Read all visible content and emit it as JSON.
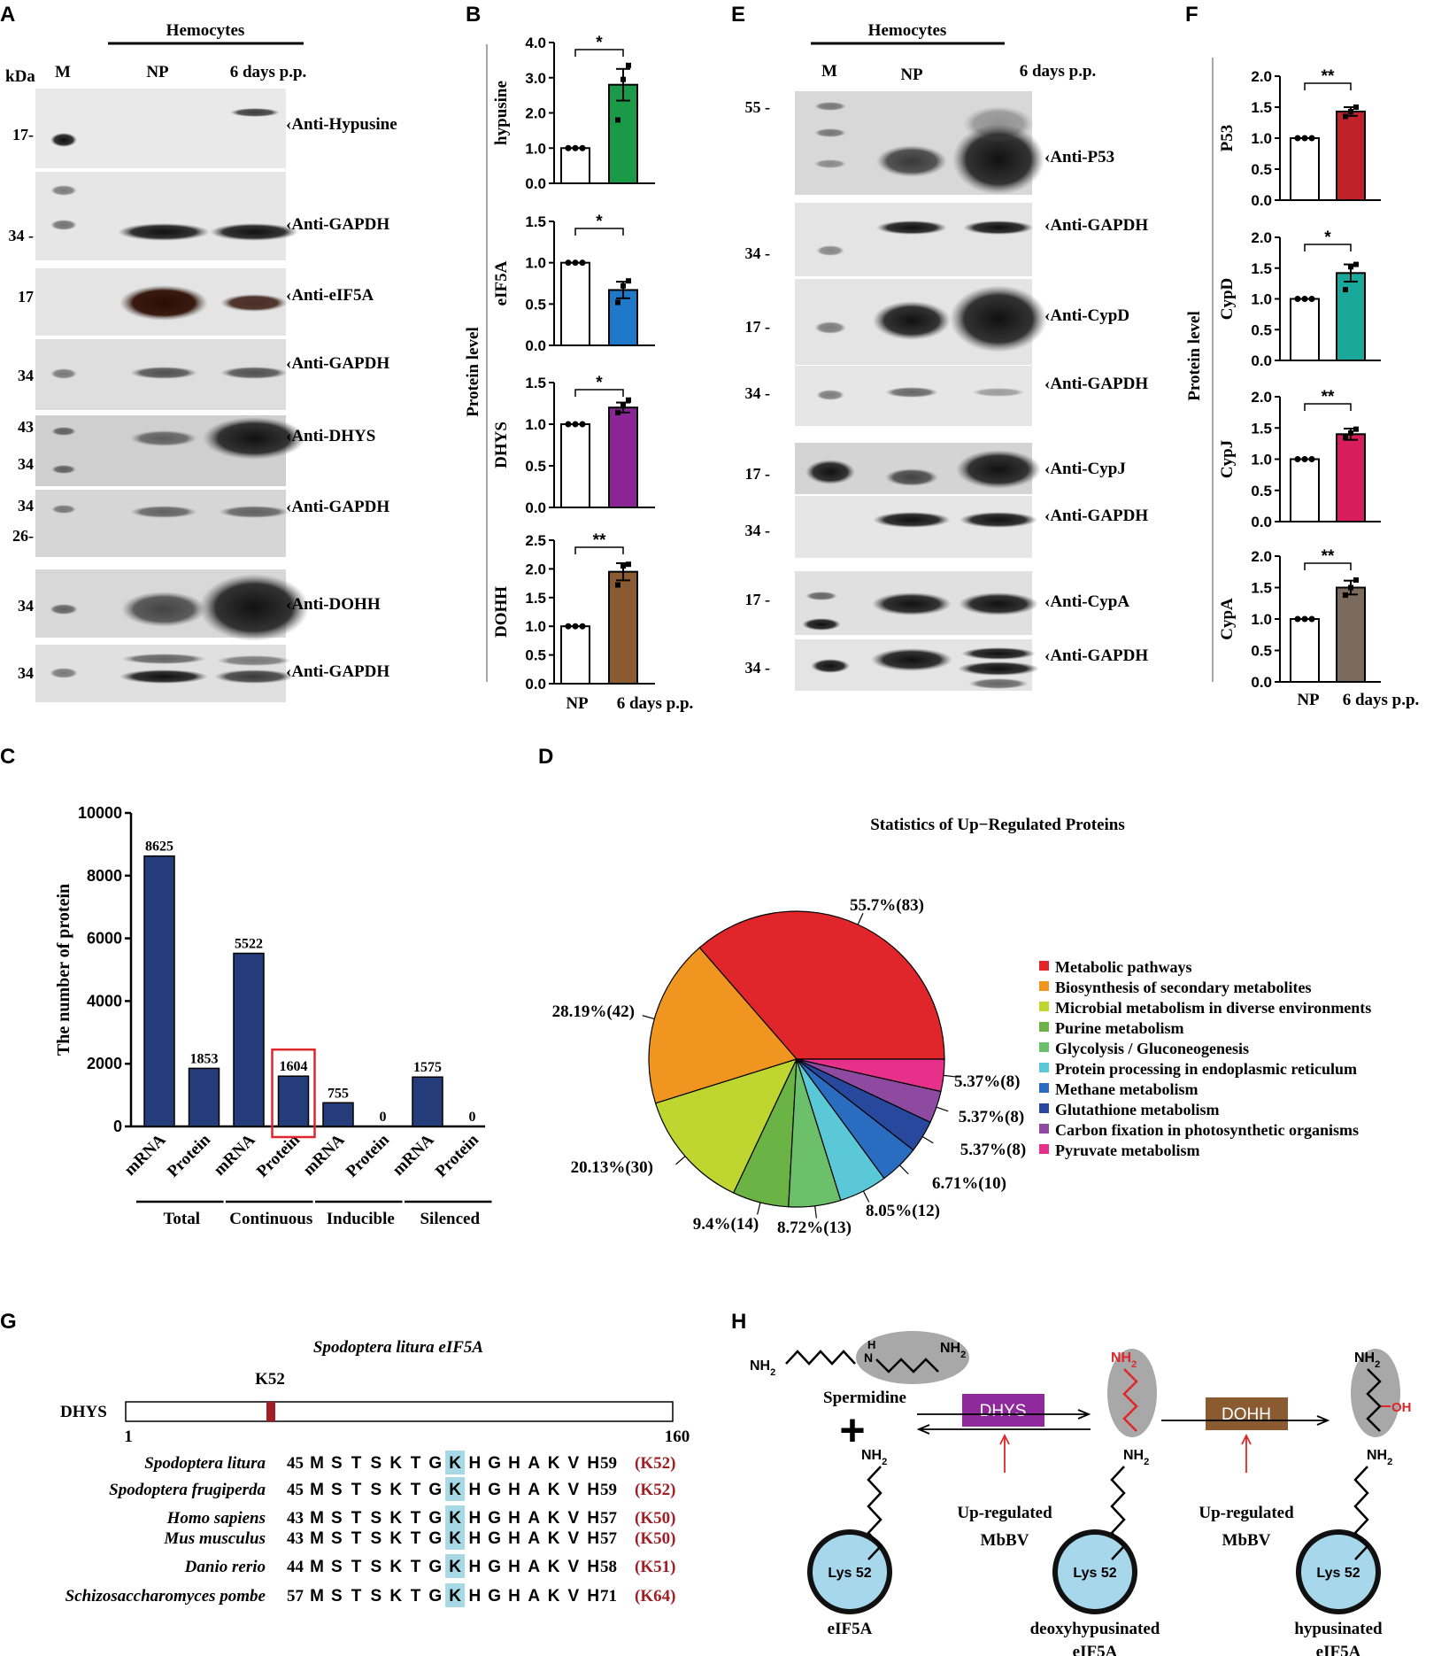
{
  "panel_letters": [
    "A",
    "B",
    "C",
    "D",
    "E",
    "F",
    "G",
    "H"
  ],
  "panelA": {
    "group_label": "Hemocytes",
    "kda_label": "kDa",
    "lane_labels": [
      "M",
      "NP",
      "6 days p.p."
    ],
    "blots": [
      {
        "label": "Anti-Hypusine",
        "markers": [
          "17-"
        ]
      },
      {
        "label": "Anti-GAPDH",
        "markers": [
          "34 -"
        ]
      },
      {
        "label": "Anti-eIF5A",
        "markers": [
          "17"
        ]
      },
      {
        "label": "Anti-GAPDH",
        "markers": [
          "34"
        ]
      },
      {
        "label": "Anti-DHYS",
        "markers": [
          "43",
          "34"
        ]
      },
      {
        "label": "Anti-GAPDH",
        "markers": [
          "34",
          "26-"
        ]
      },
      {
        "label": "Anti-DOHH",
        "markers": [
          "34"
        ]
      },
      {
        "label": "Anti-GAPDH",
        "markers": [
          "34"
        ]
      }
    ]
  },
  "panelE": {
    "group_label": "Hemocytes",
    "lane_labels": [
      "M",
      "NP",
      "6 days p.p."
    ],
    "blots": [
      {
        "label": "Anti-P53",
        "markers": [
          "55 -"
        ]
      },
      {
        "label": "Anti-GAPDH",
        "markers": [
          "34 -"
        ]
      },
      {
        "label": "Anti-CypD",
        "markers": [
          "17 -"
        ]
      },
      {
        "label": "Anti-GAPDH",
        "markers": [
          "34 -"
        ]
      },
      {
        "label": "Anti-CypJ",
        "markers": [
          "17 -"
        ]
      },
      {
        "label": "Anti-GAPDH",
        "markers": [
          "34 -"
        ]
      },
      {
        "label": "Anti-CypA",
        "markers": [
          "17 -"
        ]
      },
      {
        "label": "Anti-GAPDH",
        "markers": [
          "34 -"
        ]
      }
    ]
  },
  "chart_data": [
    {
      "panel": "B",
      "type": "bar",
      "ylabel": "Protein level",
      "categories": [
        "NP",
        "6 days p.p."
      ],
      "subplots": [
        {
          "name": "hypusine",
          "values": [
            1.0,
            2.8
          ],
          "error": [
            0,
            0.45
          ],
          "ylim": [
            0,
            4.0
          ],
          "ticks": [
            "0.0",
            "1.0",
            "2.0",
            "3.0",
            "4.0"
          ],
          "sig": "*",
          "color": "#1a9a46",
          "points": [
            [
              1,
              1,
              1
            ],
            [
              1.8,
              2.95,
              3.35
            ]
          ]
        },
        {
          "name": "eIF5A",
          "values": [
            1.0,
            0.67
          ],
          "error": [
            0,
            0.1
          ],
          "ylim": [
            0,
            1.5
          ],
          "ticks": [
            "0.0",
            "0.5",
            "1.0",
            "1.5"
          ],
          "sig": "*",
          "color": "#1f78c8",
          "points": [
            [
              1,
              1,
              1
            ],
            [
              0.52,
              0.72,
              0.78
            ]
          ]
        },
        {
          "name": "DHYS",
          "values": [
            1.0,
            1.2
          ],
          "error": [
            0,
            0.06
          ],
          "ylim": [
            0,
            1.5
          ],
          "ticks": [
            "0.0",
            "0.5",
            "1.0",
            "1.5"
          ],
          "sig": "*",
          "color": "#8b2596",
          "points": [
            [
              1,
              1,
              1
            ],
            [
              1.14,
              1.22,
              1.29
            ]
          ]
        },
        {
          "name": "DOHH",
          "values": [
            1.0,
            1.95
          ],
          "error": [
            0,
            0.15
          ],
          "ylim": [
            0,
            2.5
          ],
          "ticks": [
            "0.0",
            "0.5",
            "1.0",
            "1.5",
            "2.0",
            "2.5"
          ],
          "sig": "**",
          "color": "#8a5a30",
          "points": [
            [
              1,
              1,
              1
            ],
            [
              1.72,
              2.05,
              2.08
            ]
          ]
        }
      ]
    },
    {
      "panel": "F",
      "type": "bar",
      "ylabel": "Protein level",
      "categories": [
        "NP",
        "6 days p.p."
      ],
      "subplots": [
        {
          "name": "P53",
          "values": [
            1.0,
            1.43
          ],
          "error": [
            0,
            0.07
          ],
          "ylim": [
            0,
            2.0
          ],
          "ticks": [
            "0.0",
            "0.5",
            "1.0",
            "1.5",
            "2.0"
          ],
          "sig": "**",
          "color": "#c0222b",
          "points": [
            [
              1,
              1,
              1
            ],
            [
              1.35,
              1.43,
              1.5
            ]
          ]
        },
        {
          "name": "CypD",
          "values": [
            1.0,
            1.42
          ],
          "error": [
            0,
            0.14
          ],
          "ylim": [
            0,
            2.0
          ],
          "ticks": [
            "0.0",
            "0.5",
            "1.0",
            "1.5",
            "2.0"
          ],
          "sig": "*",
          "color": "#1aa89a",
          "points": [
            [
              1,
              1,
              1
            ],
            [
              1.15,
              1.52,
              1.56
            ]
          ]
        },
        {
          "name": "CypJ",
          "values": [
            1.0,
            1.4
          ],
          "error": [
            0,
            0.09
          ],
          "ylim": [
            0,
            2.0
          ],
          "ticks": [
            "0.0",
            "0.5",
            "1.0",
            "1.5",
            "2.0"
          ],
          "sig": "**",
          "color": "#d61e5c",
          "points": [
            [
              1,
              1,
              1
            ],
            [
              1.35,
              1.42,
              1.48
            ]
          ]
        },
        {
          "name": "CypA",
          "values": [
            1.0,
            1.5
          ],
          "error": [
            0,
            0.11
          ],
          "ylim": [
            0,
            2.0
          ],
          "ticks": [
            "0.0",
            "0.5",
            "1.0",
            "1.5",
            "2.0"
          ],
          "sig": "**",
          "color": "#7b6a5e",
          "points": [
            [
              1,
              1,
              1
            ],
            [
              1.38,
              1.5,
              1.62
            ]
          ]
        }
      ]
    },
    {
      "panel": "C",
      "type": "bar",
      "ylabel": "The number of protein",
      "ylim": [
        0,
        10000
      ],
      "yticks": [
        "0",
        "2000",
        "4000",
        "6000",
        "8000",
        "10000"
      ],
      "categories": [
        "mRNA",
        "Protein",
        "mRNA",
        "Protein",
        "mRNA",
        "Protein",
        "mRNA",
        "Protein"
      ],
      "values": [
        8625,
        1853,
        5522,
        1604,
        755,
        0,
        1575,
        0
      ],
      "value_labels": [
        "8625",
        "1853",
        "5522",
        "1604",
        "755",
        "0",
        "1575",
        "0"
      ],
      "groups": [
        "Total",
        "Continuous",
        "Inducible",
        "Silenced"
      ],
      "highlight_index": 3,
      "color": "#243d7a"
    },
    {
      "panel": "D",
      "type": "pie",
      "title": "Statistics of Up−Regulated Proteins",
      "slices": [
        {
          "name": "Metabolic pathways",
          "value": 83,
          "label": "55.7%(83)",
          "color": "#e0262a"
        },
        {
          "name": "Biosynthesis of secondary metabolites",
          "value": 42,
          "label": "28.19%(42)",
          "color": "#f0951f"
        },
        {
          "name": "Microbial metabolism in diverse environments",
          "value": 30,
          "label": "20.13%(30)",
          "color": "#bfd631"
        },
        {
          "name": "Purine metabolism",
          "value": 14,
          "label": "9.4%(14)",
          "color": "#6ab344"
        },
        {
          "name": "Glycolysis / Gluconeogenesis",
          "value": 13,
          "label": "8.72%(13)",
          "color": "#6cc06a"
        },
        {
          "name": "Protein processing in endoplasmic reticulum",
          "value": 12,
          "label": "8.05%(12)",
          "color": "#5bc8d8"
        },
        {
          "name": "Methane metabolism",
          "value": 10,
          "label": "6.71%(10)",
          "color": "#2a6cc0"
        },
        {
          "name": "Glutathione metabolism",
          "value": 8,
          "label": "5.37%(8)",
          "color": "#27489c"
        },
        {
          "name": "Carbon fixation in photosynthetic organisms",
          "value": 8,
          "label": "5.37%(8)",
          "color": "#8d4aa0"
        },
        {
          "name": "Pyruvate metabolism",
          "value": 8,
          "label": "5.37%(8)",
          "color": "#e6308a"
        }
      ]
    }
  ],
  "panelG": {
    "title": "Spodoptera litura eIF5A",
    "domain_label": "DHYS",
    "site_label": "K52",
    "start": "1",
    "end": "160",
    "rows": [
      {
        "species": "Spodoptera litura",
        "start": "45",
        "end": "59",
        "site": "(K52)"
      },
      {
        "species": "Spodoptera frugiperda",
        "start": "45",
        "end": "59",
        "site": "(K52)"
      },
      {
        "species": "Homo sapiens",
        "start": "43",
        "end": "57",
        "site": "(K50)"
      },
      {
        "species": "Mus musculus",
        "start": "43",
        "end": "57",
        "site": "(K50)"
      },
      {
        "species": "Danio rerio",
        "start": "44",
        "end": "58",
        "site": "(K51)"
      },
      {
        "species": "Schizosaccharomyces pombe",
        "start": "57",
        "end": "71",
        "site": "(K64)"
      }
    ],
    "sequence": [
      "M",
      "S",
      "T",
      "S",
      "K",
      "T",
      "G",
      "K",
      "H",
      "G",
      "H",
      "A",
      "K",
      "V",
      "H"
    ],
    "highlight_position": 7
  },
  "panelH": {
    "spermidine_label": "Spermidine",
    "enzyme1": "DHYS",
    "enzyme2": "DOHH",
    "upreg_label": "Up-regulated",
    "mbbv_label": "MbBV",
    "lys_label": "Lys 52",
    "nh2": "NH",
    "sub2": "2",
    "oh": "OH",
    "plus": "+",
    "stage_labels": [
      [
        "eIF5A"
      ],
      [
        "deoxyhypusinated",
        "eIF5A"
      ],
      [
        "hypusinated",
        "eIF5A"
      ]
    ],
    "colors": {
      "dhys": "#8e2a9c",
      "dohh": "#8a5a30",
      "lys": "#a6d7ea",
      "arrow_red": "#e0262a",
      "oval": "#a8a8a8"
    }
  }
}
